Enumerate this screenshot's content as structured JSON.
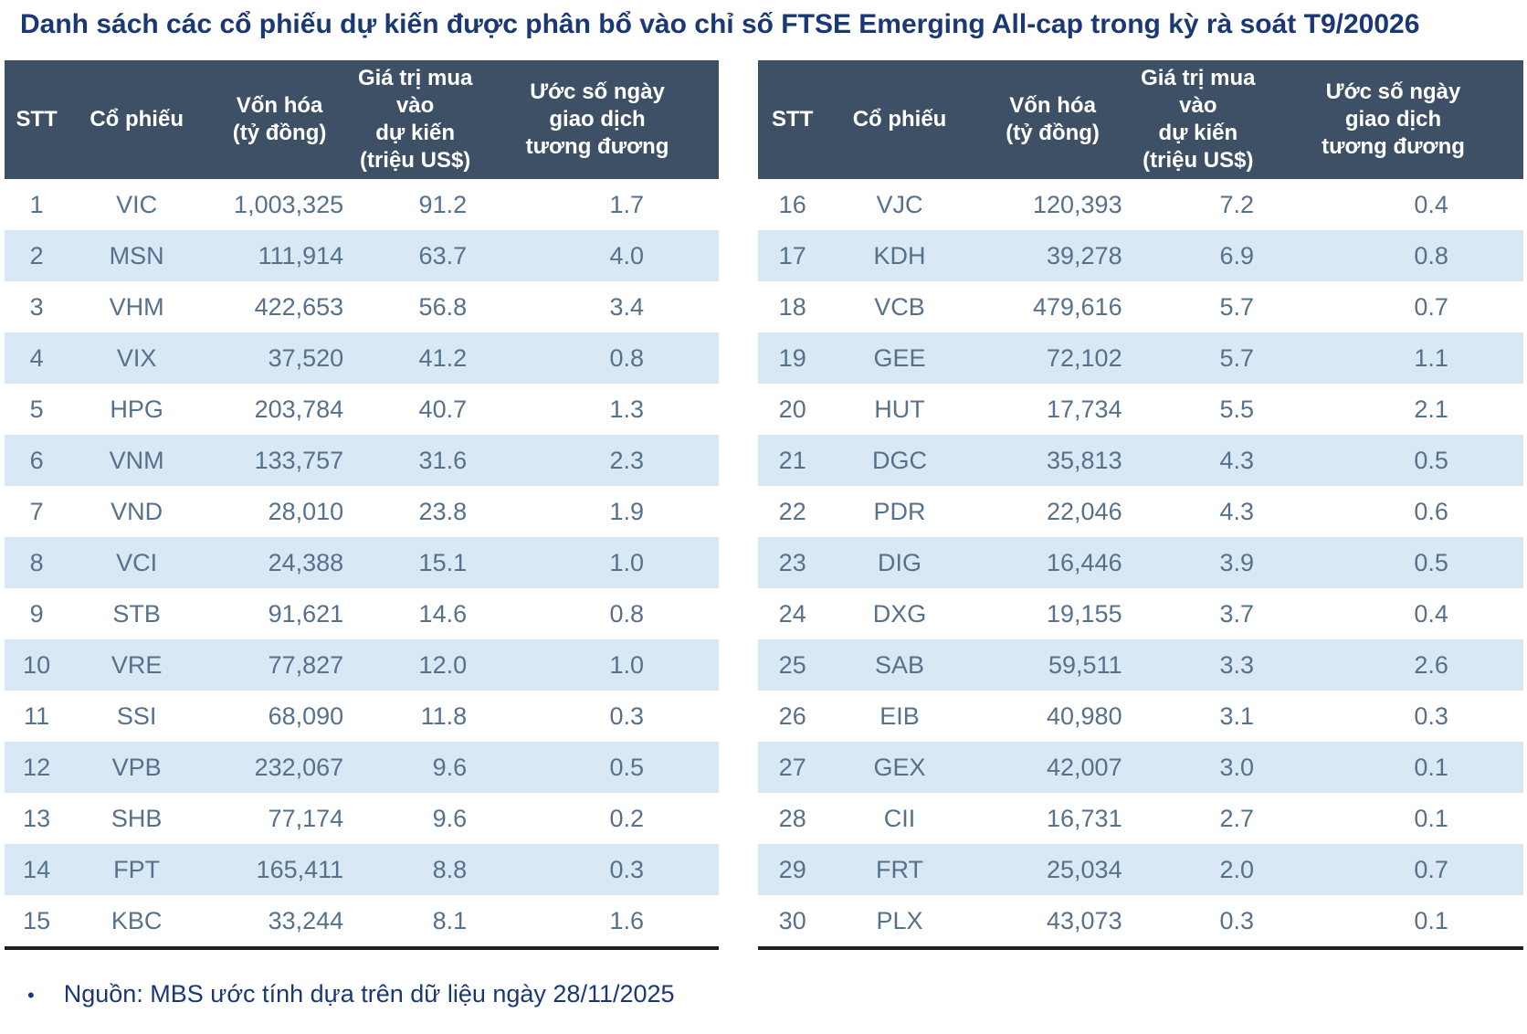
{
  "chart_data": {
    "type": "table",
    "title": "Danh sách các cổ phiếu dự kiến được phân bổ vào chỉ số FTSE Emerging All-cap trong kỳ rà soát T9/20026",
    "columns": [
      [
        "STT"
      ],
      [
        "Cổ phiếu"
      ],
      [
        "Vốn hóa",
        "(tỷ đồng)"
      ],
      [
        "Giá trị mua vào",
        "dự kiến",
        "(triệu US$)"
      ],
      [
        "Ước số ngày",
        "giao dịch",
        "tương đương"
      ]
    ],
    "column_units": {
      "market_cap": "tỷ đồng",
      "expected_buy_value": "triệu US$",
      "equivalent_trading_days": "ngày"
    },
    "tables": [
      {
        "rows": [
          [
            "1",
            "VIC",
            "1,003,325",
            "91.2",
            "1.7"
          ],
          [
            "2",
            "MSN",
            "111,914",
            "63.7",
            "4.0"
          ],
          [
            "3",
            "VHM",
            "422,653",
            "56.8",
            "3.4"
          ],
          [
            "4",
            "VIX",
            "37,520",
            "41.2",
            "0.8"
          ],
          [
            "5",
            "HPG",
            "203,784",
            "40.7",
            "1.3"
          ],
          [
            "6",
            "VNM",
            "133,757",
            "31.6",
            "2.3"
          ],
          [
            "7",
            "VND",
            "28,010",
            "23.8",
            "1.9"
          ],
          [
            "8",
            "VCI",
            "24,388",
            "15.1",
            "1.0"
          ],
          [
            "9",
            "STB",
            "91,621",
            "14.6",
            "0.8"
          ],
          [
            "10",
            "VRE",
            "77,827",
            "12.0",
            "1.0"
          ],
          [
            "11",
            "SSI",
            "68,090",
            "11.8",
            "0.3"
          ],
          [
            "12",
            "VPB",
            "232,067",
            "9.6",
            "0.5"
          ],
          [
            "13",
            "SHB",
            "77,174",
            "9.6",
            "0.2"
          ],
          [
            "14",
            "FPT",
            "165,411",
            "8.8",
            "0.3"
          ],
          [
            "15",
            "KBC",
            "33,244",
            "8.1",
            "1.6"
          ]
        ]
      },
      {
        "rows": [
          [
            "16",
            "VJC",
            "120,393",
            "7.2",
            "0.4"
          ],
          [
            "17",
            "KDH",
            "39,278",
            "6.9",
            "0.8"
          ],
          [
            "18",
            "VCB",
            "479,616",
            "5.7",
            "0.7"
          ],
          [
            "19",
            "GEE",
            "72,102",
            "5.7",
            "1.1"
          ],
          [
            "20",
            "HUT",
            "17,734",
            "5.5",
            "2.1"
          ],
          [
            "21",
            "DGC",
            "35,813",
            "4.3",
            "0.5"
          ],
          [
            "22",
            "PDR",
            "22,046",
            "4.3",
            "0.6"
          ],
          [
            "23",
            "DIG",
            "16,446",
            "3.9",
            "0.5"
          ],
          [
            "24",
            "DXG",
            "19,155",
            "3.7",
            "0.4"
          ],
          [
            "25",
            "SAB",
            "59,511",
            "3.3",
            "2.6"
          ],
          [
            "26",
            "EIB",
            "40,980",
            "3.1",
            "0.3"
          ],
          [
            "27",
            "GEX",
            "42,007",
            "3.0",
            "0.1"
          ],
          [
            "28",
            "CII",
            "16,731",
            "2.7",
            "0.1"
          ],
          [
            "29",
            "FRT",
            "25,034",
            "2.0",
            "0.7"
          ],
          [
            "30",
            "PLX",
            "43,073",
            "0.3",
            "0.1"
          ]
        ]
      }
    ],
    "layout": {
      "legend": "none",
      "grid": "row-stripes"
    }
  },
  "source": {
    "bullet": "•",
    "text": "Nguồn: MBS ước tính dựa trên dữ liệu ngày 28/11/2025"
  },
  "colors": {
    "title_text": "#1b3876",
    "header_bg": "#3e5066",
    "header_text": "#ffffff",
    "row_stripe_bg": "#d9e8f5",
    "row_plain_bg": "#ffffff",
    "data_text": "#56718c",
    "table_bottom_border": "#1f1f1f"
  }
}
